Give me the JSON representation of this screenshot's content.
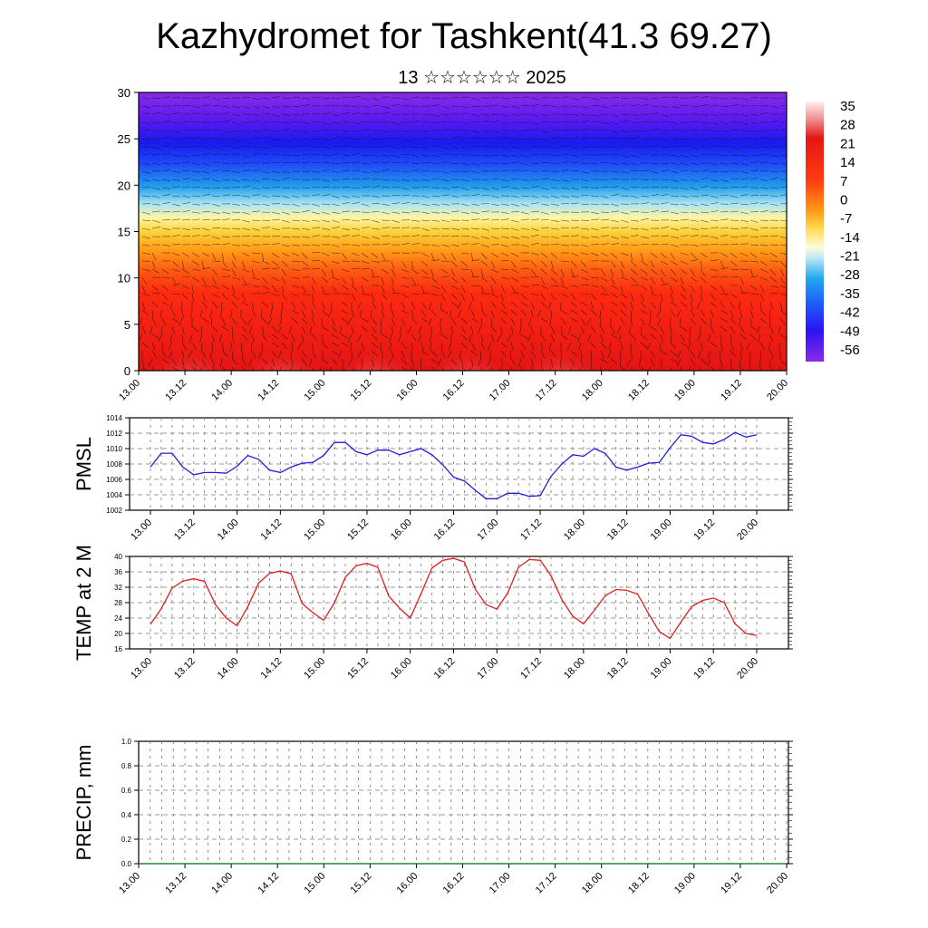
{
  "title": "Kazhydromet for Tashkent(41.3 69.27)",
  "subtitle": "13 ☆☆☆☆☆☆ 2025",
  "time_ticks": [
    "13.00",
    "13.12",
    "14.00",
    "14.12",
    "15.00",
    "15.12",
    "16.00",
    "16.12",
    "17.00",
    "17.12",
    "18.00",
    "18.12",
    "19.00",
    "19.12",
    "20.00"
  ],
  "colors": {
    "pmsl_line": "#1f1fe0",
    "temp_line": "#e01e1e",
    "precip_line": "#1a8a1a",
    "grid": "#7a7a7a"
  },
  "chart_data": [
    {
      "type": "heatmap",
      "title": "",
      "y_range": [
        0,
        30
      ],
      "y_ticks": [
        "0",
        "5",
        "10",
        "15",
        "20",
        "25",
        "30"
      ],
      "x_ticks_ref": "time_ticks",
      "colorbar": {
        "labels": [
          "35",
          "28",
          "21",
          "14",
          "7",
          "0",
          "-7",
          "-14",
          "-21",
          "-28",
          "-35",
          "-42",
          "-49",
          "-56"
        ],
        "range": [
          -60,
          38
        ],
        "colors": [
          "#7a2fee",
          "#3416f2",
          "#1c49ff",
          "#1fa2ec",
          "#7fd8f6",
          "#dff1f8",
          "#fff3a0",
          "#ffcc33",
          "#ff9e16",
          "#ff6414",
          "#ff2e10",
          "#e41616",
          "#f08c8c",
          "#ffeeee"
        ]
      },
      "wind_barbs": true
    },
    {
      "type": "line",
      "ylabel": "PMSL",
      "ylim": [
        1002,
        1014
      ],
      "y_ticks": [
        "1002",
        "1004",
        "1006",
        "1008",
        "1010",
        "1012",
        "1014"
      ],
      "x_ticks_ref": "time_ticks",
      "series": [
        {
          "values": [
            1007.6,
            1009.4,
            1009.4,
            1007.6,
            1006.6,
            1006.9,
            1006.9,
            1006.8,
            1007.7,
            1009.1,
            1008.6,
            1007.2,
            1006.9,
            1007.6,
            1008.1,
            1008.2,
            1009.1,
            1010.8,
            1010.8,
            1009.6,
            1009.2,
            1009.8,
            1009.8,
            1009.2,
            1009.6,
            1010.0,
            1009.2,
            1007.9,
            1006.3,
            1005.8,
            1004.6,
            1003.5,
            1003.5,
            1004.2,
            1004.2,
            1003.8,
            1003.9,
            1006.4,
            1008.0,
            1009.2,
            1009.0,
            1010.0,
            1009.4,
            1007.6,
            1007.2,
            1007.6,
            1008.1,
            1008.2,
            1010.1,
            1011.8,
            1011.6,
            1010.8,
            1010.6,
            1011.2,
            1012.1,
            1011.5,
            1011.8
          ]
        }
      ]
    },
    {
      "type": "line",
      "ylabel": "TEMP at 2 M",
      "ylim": [
        16,
        40
      ],
      "y_ticks": [
        "16",
        "20",
        "24",
        "28",
        "32",
        "36",
        "40"
      ],
      "x_ticks_ref": "time_ticks",
      "series": [
        {
          "values": [
            22.4,
            26.4,
            31.8,
            33.6,
            34.2,
            33.5,
            27.5,
            24.0,
            22.0,
            27.0,
            33.1,
            35.6,
            36.2,
            35.5,
            27.8,
            25.4,
            23.4,
            28.0,
            34.6,
            37.6,
            38.2,
            37.2,
            29.8,
            26.6,
            24.0,
            30.4,
            37.0,
            39.0,
            39.5,
            38.6,
            31.5,
            27.5,
            26.3,
            30.5,
            37.2,
            39.2,
            39.0,
            35.0,
            28.8,
            24.5,
            22.5,
            26.0,
            29.8,
            31.4,
            31.2,
            30.2,
            25.2,
            20.5,
            18.7,
            23.0,
            27.0,
            28.6,
            29.2,
            28.0,
            22.5,
            20.0,
            19.5
          ]
        }
      ]
    },
    {
      "type": "line",
      "ylabel": "PRECIP, mm",
      "ylim": [
        0,
        1
      ],
      "y_ticks": [
        "0.0",
        "0.2",
        "0.4",
        "0.6",
        "0.8",
        "1.0"
      ],
      "x_ticks_ref": "time_ticks",
      "series": [
        {
          "values": [
            0,
            0,
            0,
            0,
            0,
            0,
            0,
            0,
            0,
            0,
            0,
            0,
            0,
            0,
            0,
            0,
            0,
            0,
            0,
            0,
            0,
            0,
            0,
            0,
            0,
            0,
            0,
            0,
            0,
            0,
            0,
            0,
            0,
            0,
            0,
            0,
            0,
            0,
            0,
            0,
            0,
            0,
            0,
            0,
            0,
            0,
            0,
            0,
            0,
            0,
            0,
            0,
            0,
            0,
            0,
            0,
            0
          ]
        }
      ]
    }
  ]
}
